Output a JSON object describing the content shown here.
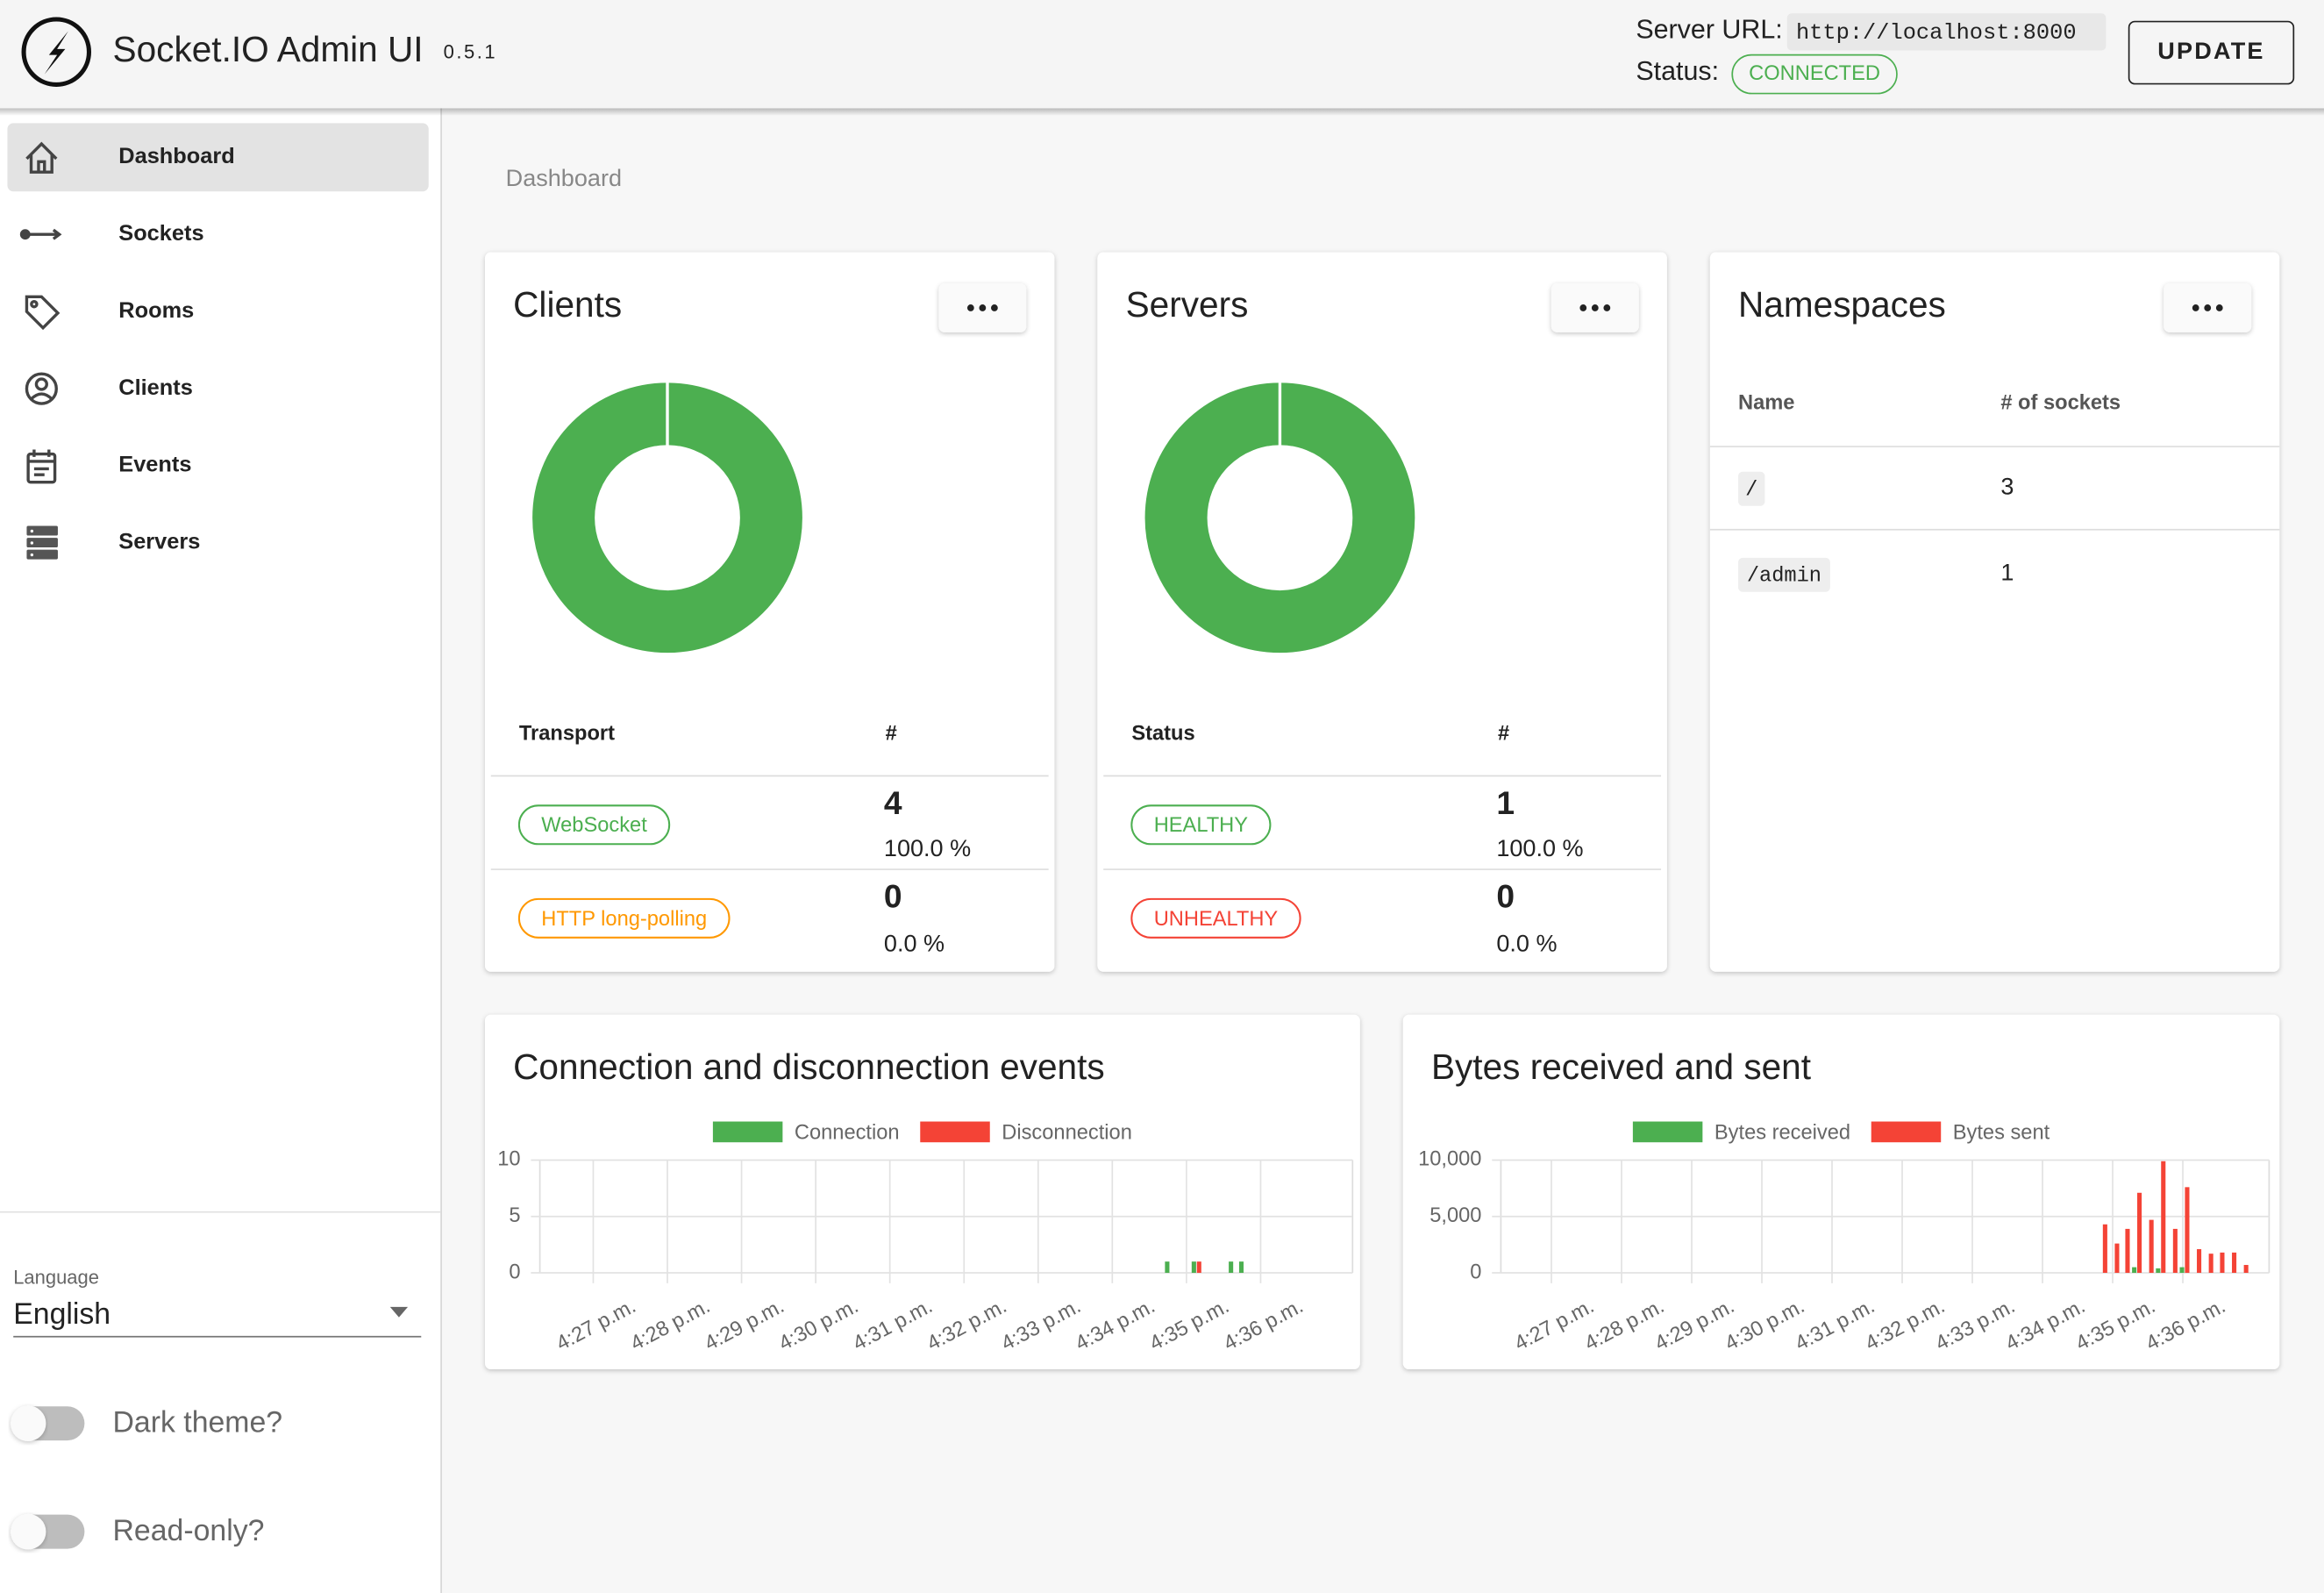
{
  "header": {
    "title": "Socket.IO Admin UI",
    "version": "0.5.1",
    "server_url_label": "Server URL:",
    "server_url": "http://localhost:8000",
    "status_label": "Status:",
    "status": "CONNECTED",
    "update": "UPDATE"
  },
  "sidebar": {
    "nav": [
      "Dashboard",
      "Sockets",
      "Rooms",
      "Clients",
      "Events",
      "Servers"
    ],
    "language_label": "Language",
    "language": "English",
    "toggles": [
      "Dark theme?",
      "Read-only?"
    ]
  },
  "breadcrumb": "Dashboard",
  "namespaces": {
    "title": "Namespaces",
    "headers": [
      "Name",
      "# of sockets"
    ],
    "rows": [
      [
        "/",
        3
      ],
      [
        "/admin",
        1
      ]
    ]
  },
  "chart_data": [
    {
      "type": "pie",
      "donut": true,
      "title": "Clients",
      "table_headers": [
        "Transport",
        "#"
      ],
      "categories": [
        "WebSocket",
        "HTTP long-polling"
      ],
      "values": [
        4,
        0
      ],
      "colors": [
        "#4caf50",
        "#ff9800"
      ],
      "percent_labels": [
        "100.0 %",
        "0.0 %"
      ]
    },
    {
      "type": "pie",
      "donut": true,
      "title": "Servers",
      "table_headers": [
        "Status",
        "#"
      ],
      "categories": [
        "HEALTHY",
        "UNHEALTHY"
      ],
      "values": [
        1,
        0
      ],
      "colors": [
        "#4caf50",
        "#f44336"
      ],
      "percent_labels": [
        "100.0 %",
        "0.0 %"
      ]
    },
    {
      "type": "bar",
      "title": "Connection and disconnection events",
      "x": [
        34.78,
        35.14,
        35.64,
        35.78
      ],
      "xlim": [
        26.28,
        37.24
      ],
      "xticks": [
        {
          "value": 27,
          "label": "4:27 p.m."
        },
        {
          "value": 28,
          "label": "4:28 p.m."
        },
        {
          "value": 29,
          "label": "4:29 p.m."
        },
        {
          "value": 30,
          "label": "4:30 p.m."
        },
        {
          "value": 31,
          "label": "4:31 p.m."
        },
        {
          "value": 32,
          "label": "4:32 p.m."
        },
        {
          "value": 33,
          "label": "4:33 p.m."
        },
        {
          "value": 34,
          "label": "4:34 p.m."
        },
        {
          "value": 35,
          "label": "4:35 p.m."
        },
        {
          "value": 36,
          "label": "4:36 p.m."
        }
      ],
      "ylim": [
        0,
        10
      ],
      "yticks": [
        0,
        5,
        10
      ],
      "grid": true,
      "series": [
        {
          "name": "Connection",
          "color": "#4caf50",
          "values": [
            1,
            1,
            1,
            1
          ]
        },
        {
          "name": "Disconnection",
          "color": "#f44336",
          "values": [
            0,
            1,
            0,
            0
          ]
        }
      ]
    },
    {
      "type": "bar",
      "title": "Bytes received and sent",
      "x": [
        34.86,
        35.03,
        35.18,
        35.35,
        35.52,
        35.69,
        35.86,
        36.03,
        36.2,
        36.37,
        36.53,
        36.7,
        36.87
      ],
      "xlim": [
        26.28,
        37.23
      ],
      "xticks": [
        {
          "value": 27,
          "label": "4:27 p.m."
        },
        {
          "value": 28,
          "label": "4:28 p.m."
        },
        {
          "value": 29,
          "label": "4:29 p.m."
        },
        {
          "value": 30,
          "label": "4:30 p.m."
        },
        {
          "value": 31,
          "label": "4:31 p.m."
        },
        {
          "value": 32,
          "label": "4:32 p.m."
        },
        {
          "value": 33,
          "label": "4:33 p.m."
        },
        {
          "value": 34,
          "label": "4:34 p.m."
        },
        {
          "value": 35,
          "label": "4:35 p.m."
        },
        {
          "value": 36,
          "label": "4:36 p.m."
        }
      ],
      "ylim": [
        0,
        10000
      ],
      "yticks": [
        0,
        {
          "value": 5000,
          "label": "5,000"
        },
        {
          "value": 10000,
          "label": "10,000"
        }
      ],
      "grid": true,
      "series": [
        {
          "name": "Bytes received",
          "color": "#4caf50",
          "values": [
            0,
            0,
            0,
            500,
            0,
            400,
            0,
            500,
            0,
            0,
            0,
            0,
            0
          ]
        },
        {
          "name": "Bytes sent",
          "color": "#f44336",
          "values": [
            4300,
            2600,
            3900,
            7100,
            4700,
            9900,
            3900,
            7600,
            2100,
            1700,
            1800,
            1800,
            700
          ]
        }
      ]
    }
  ]
}
